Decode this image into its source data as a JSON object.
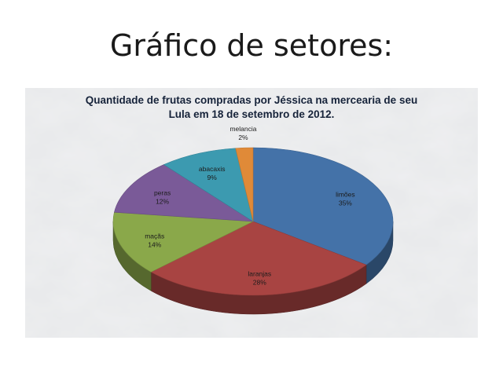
{
  "slide": {
    "title": "Gráfico de setores:"
  },
  "chart_data": {
    "type": "pie",
    "title_lines": [
      "Quantidade de frutas compradas por Jéssica na mercearia de seu",
      "Lula em 18 de setembro de 2012."
    ],
    "categories": [
      "limões",
      "laranjas",
      "maçãs",
      "peras",
      "abacaxis",
      "melancia"
    ],
    "values": [
      35,
      28,
      14,
      12,
      9,
      2
    ],
    "percent_labels": [
      "35%",
      "28%",
      "14%",
      "12%",
      "9%",
      "2%"
    ],
    "colors": [
      "#4472a8",
      "#a84442",
      "#8aa84a",
      "#7a5a98",
      "#3c9ab0",
      "#e08a38"
    ],
    "three_d": true,
    "legend": "none",
    "background": "marble texture"
  }
}
